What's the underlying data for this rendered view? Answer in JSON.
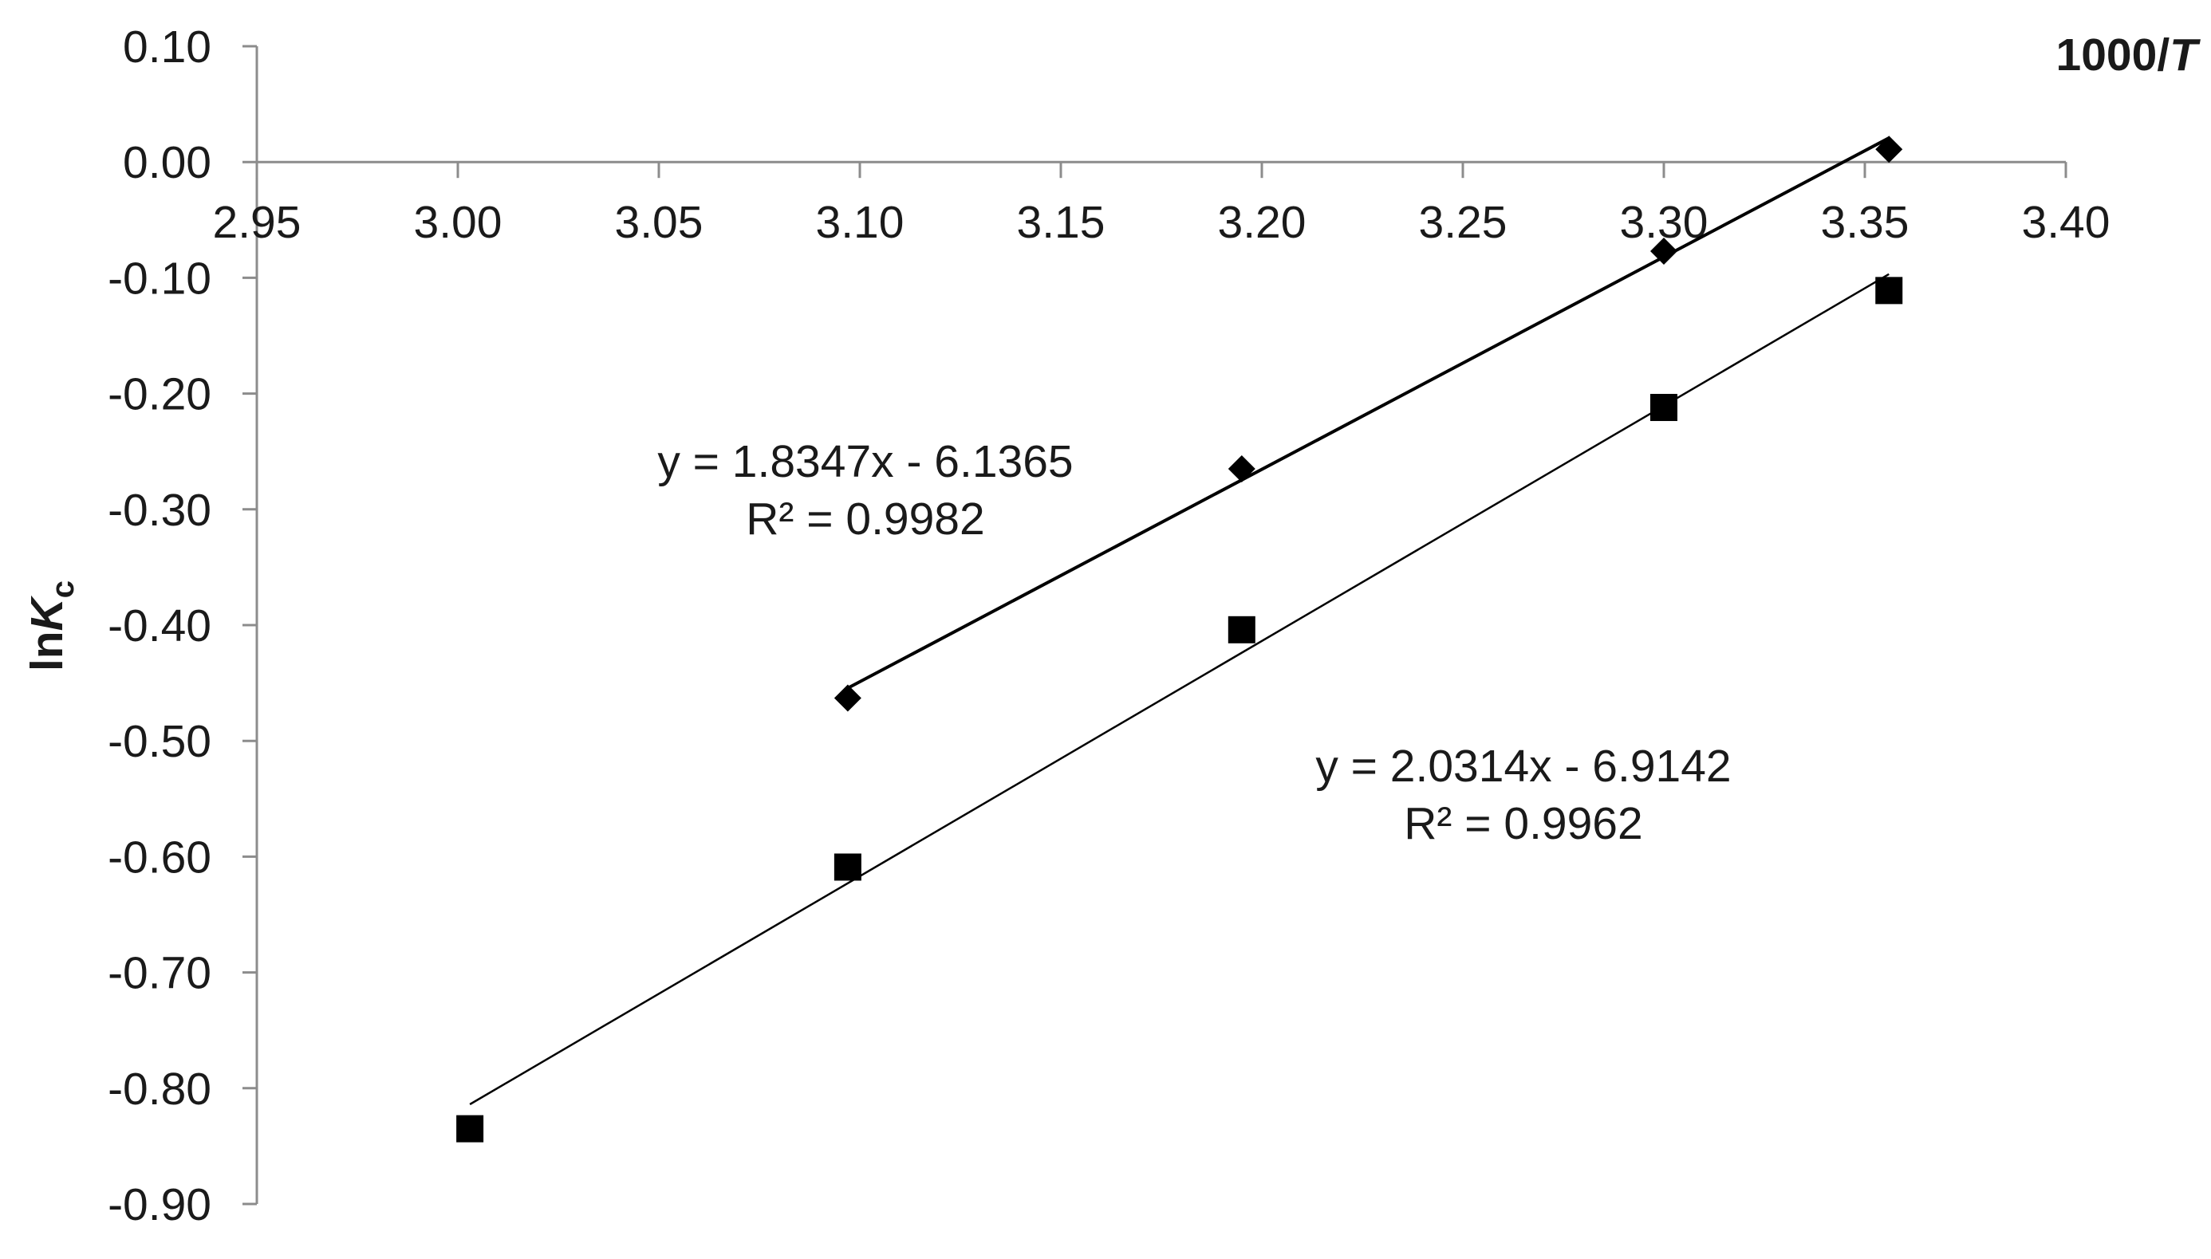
{
  "chart_data": {
    "type": "scatter",
    "xlabel": {
      "prefix": "1000/",
      "italic": "T"
    },
    "ylabel": {
      "prefix": "ln",
      "italic": "K",
      "sub": "c"
    },
    "xlim": [
      2.95,
      3.4
    ],
    "ylim": [
      -0.9,
      0.1
    ],
    "x_ticks": [
      2.95,
      3.0,
      3.05,
      3.1,
      3.15,
      3.2,
      3.25,
      3.3,
      3.35,
      3.4
    ],
    "x_tick_labels": [
      "2.95",
      "3.00",
      "3.05",
      "3.10",
      "3.15",
      "3.20",
      "3.25",
      "3.30",
      "3.35",
      "3.40"
    ],
    "y_ticks": [
      0.1,
      0.0,
      -0.1,
      -0.2,
      -0.3,
      -0.4,
      -0.5,
      -0.6,
      -0.7,
      -0.8,
      -0.9
    ],
    "y_tick_labels": [
      "0.10",
      "0.00",
      "-0.10",
      "-0.20",
      "-0.30",
      "-0.40",
      "-0.50",
      "-0.60",
      "-0.70",
      "-0.80",
      "-0.90"
    ],
    "x_axis_crosses_y": 0.0,
    "grid": false,
    "series": [
      {
        "marker": "diamond",
        "color": "#000000",
        "x": [
          3.097,
          3.195,
          3.3,
          3.356
        ],
        "y": [
          -0.463,
          -0.265,
          -0.077,
          0.011
        ],
        "trendline": {
          "slope": 1.8347,
          "intercept": -6.1365,
          "x_range": [
            3.097,
            3.356
          ]
        },
        "equation": "y = 1.8347x - 6.1365",
        "r2": "R² = 0.9982"
      },
      {
        "marker": "square",
        "color": "#000000",
        "x": [
          3.003,
          3.097,
          3.195,
          3.3,
          3.356
        ],
        "y": [
          -0.835,
          -0.609,
          -0.404,
          -0.212,
          -0.111
        ],
        "trendline": {
          "slope": 2.0314,
          "intercept": -6.9142,
          "x_range": [
            3.003,
            3.356
          ]
        },
        "equation": "y = 2.0314x - 6.9142",
        "r2": "R² = 0.9962"
      }
    ]
  }
}
